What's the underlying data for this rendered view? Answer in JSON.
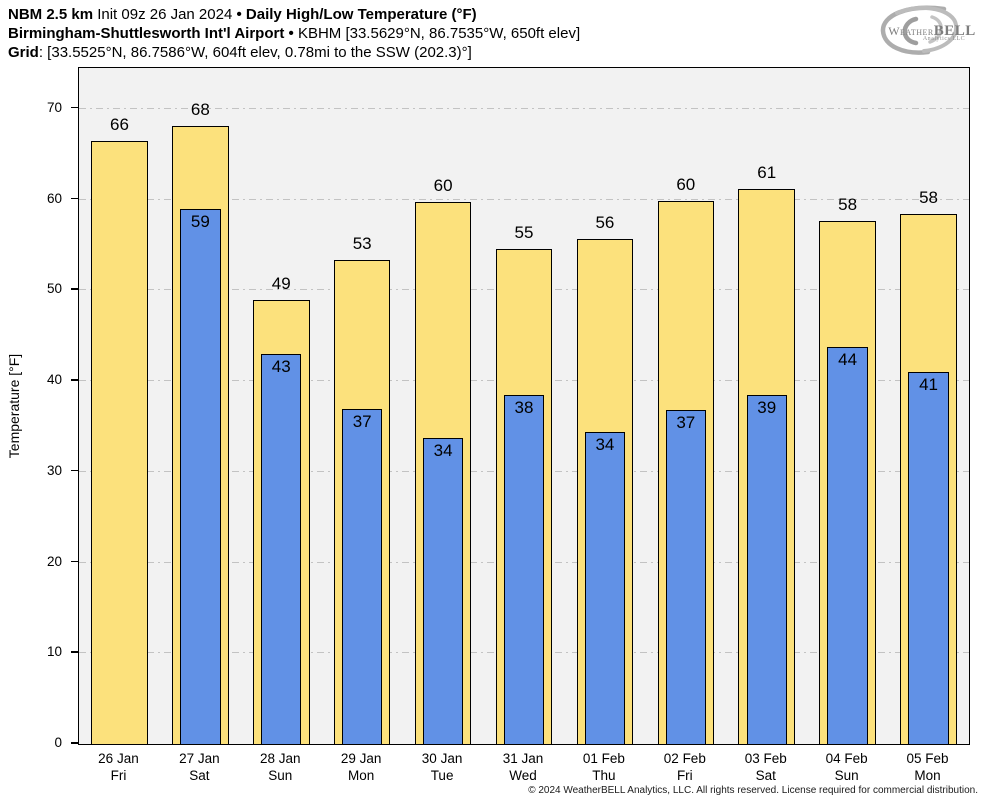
{
  "header": {
    "line1": {
      "model": "NBM 2.5 km",
      "init": "Init 09z 26 Jan 2024",
      "sep": "•",
      "product": "Daily High/Low Temperature (°F)"
    },
    "line2": {
      "station": "Birmingham-Shuttlesworth Int'l Airport",
      "sep": "•",
      "meta": "KBHM [33.5629°N, 86.7535°W, 650ft elev]"
    },
    "line3": {
      "label": "Grid",
      "value": ": [33.5525°N, 86.7586°W, 604ft elev, 0.78mi to the SSW (202.3)°]"
    }
  },
  "logo": {
    "weather": "Weather",
    "bell": "BELL",
    "sub": "Analytics LLC"
  },
  "chart_data": {
    "type": "bar",
    "title": "NBM 2.5 km Daily High/Low Temperature (°F) — Birmingham-Shuttlesworth Int'l Airport (KBHM)",
    "ylabel": "Temperature [°F]",
    "xlabel": "",
    "ylim": [
      0,
      74.5
    ],
    "yticks": [
      0,
      10,
      20,
      30,
      40,
      50,
      60,
      70
    ],
    "grid": "horizontal-dashdot",
    "legend_position": "none",
    "plot_bg": "#f2f2f2",
    "grid_color": "#c3c3c3",
    "categories": [
      {
        "date": "26 Jan",
        "day": "Fri"
      },
      {
        "date": "27 Jan",
        "day": "Sat"
      },
      {
        "date": "28 Jan",
        "day": "Sun"
      },
      {
        "date": "29 Jan",
        "day": "Mon"
      },
      {
        "date": "30 Jan",
        "day": "Tue"
      },
      {
        "date": "31 Jan",
        "day": "Wed"
      },
      {
        "date": "01 Feb",
        "day": "Thu"
      },
      {
        "date": "02 Feb",
        "day": "Fri"
      },
      {
        "date": "03 Feb",
        "day": "Sat"
      },
      {
        "date": "04 Feb",
        "day": "Sun"
      },
      {
        "date": "05 Feb",
        "day": "Mon"
      }
    ],
    "series": [
      {
        "name": "Daily High",
        "color": "#FCE17C",
        "values": [
          66,
          68,
          49,
          53,
          60,
          55,
          56,
          60,
          61,
          58,
          58
        ],
        "bar_heights_exact": [
          66.5,
          68.1,
          48.9,
          53.3,
          59.7,
          54.6,
          55.7,
          59.8,
          61.2,
          57.6,
          58.4
        ]
      },
      {
        "name": "Daily Low",
        "color": "#6191E6",
        "values": [
          null,
          59,
          43,
          37,
          34,
          38,
          34,
          37,
          39,
          44,
          41
        ],
        "bar_heights_exact": [
          null,
          59.0,
          43.0,
          36.9,
          33.7,
          38.5,
          34.4,
          36.8,
          38.5,
          43.7,
          41.0
        ]
      }
    ]
  },
  "footer": {
    "copyright": "© 2024 WeatherBELL Analytics, LLC. All rights reserved. License required for commercial distribution."
  }
}
